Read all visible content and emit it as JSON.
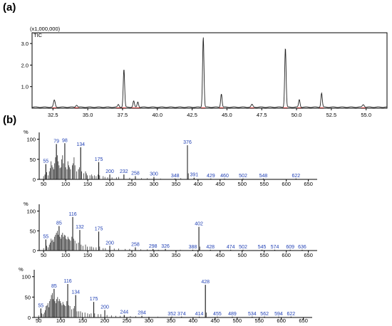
{
  "panels": {
    "a_label": "(a)",
    "b_label": "(b)"
  },
  "chart_data": [
    {
      "type": "line",
      "panel": "a",
      "scale_note": "(x1,000,000)",
      "trace_label": "TIC",
      "xlim": [
        31.0,
        56.5
      ],
      "ylim": [
        0.0,
        3.5
      ],
      "xticks": [
        32.5,
        35.0,
        37.5,
        40.0,
        42.5,
        45.0,
        47.5,
        50.0,
        52.5,
        55.0
      ],
      "xtick_labels": [
        "32.5",
        "35.0",
        "37.5",
        "40.0",
        "42.5",
        "45.0",
        "47.5",
        "50.0",
        "52.5",
        "55.0"
      ],
      "yticks": [
        1.0,
        2.0,
        3.0
      ],
      "ytick_labels": [
        "1.0",
        "2.0",
        "3.0"
      ],
      "baseline": 0.05,
      "peaks": [
        {
          "x": 32.6,
          "y": 0.32,
          "w": 0.06
        },
        {
          "x": 34.2,
          "y": 0.1,
          "w": 0.06
        },
        {
          "x": 37.2,
          "y": 0.12,
          "w": 0.05
        },
        {
          "x": 37.6,
          "y": 1.75,
          "w": 0.05
        },
        {
          "x": 38.3,
          "y": 0.28,
          "w": 0.05
        },
        {
          "x": 38.6,
          "y": 0.25,
          "w": 0.05
        },
        {
          "x": 43.3,
          "y": 3.25,
          "w": 0.05
        },
        {
          "x": 44.6,
          "y": 0.62,
          "w": 0.05
        },
        {
          "x": 46.8,
          "y": 0.12,
          "w": 0.06
        },
        {
          "x": 49.2,
          "y": 2.75,
          "w": 0.05
        },
        {
          "x": 50.2,
          "y": 0.35,
          "w": 0.05
        },
        {
          "x": 51.8,
          "y": 0.65,
          "w": 0.05
        },
        {
          "x": 54.8,
          "y": 0.12,
          "w": 0.07
        }
      ]
    },
    {
      "type": "bar",
      "panel": "b1",
      "ylabel": "%",
      "xlim": [
        40,
        670
      ],
      "ylim": [
        0,
        110
      ],
      "xticks": [
        50,
        100,
        150,
        200,
        250,
        300,
        350,
        400,
        450,
        500,
        550,
        600,
        650
      ],
      "yticks": [
        0,
        50,
        100
      ],
      "peak_labels": [
        {
          "mz": 55,
          "i": 38,
          "label": "55"
        },
        {
          "mz": 79,
          "i": 88,
          "label": "79"
        },
        {
          "mz": 98,
          "i": 90,
          "label": "98"
        },
        {
          "mz": 134,
          "i": 80,
          "label": "134"
        },
        {
          "mz": 175,
          "i": 43,
          "label": "175"
        },
        {
          "mz": 200,
          "i": 12,
          "label": "200"
        },
        {
          "mz": 232,
          "i": 12,
          "label": "232"
        },
        {
          "mz": 258,
          "i": 8,
          "label": "258"
        },
        {
          "mz": 300,
          "i": 6,
          "label": "300"
        },
        {
          "mz": 348,
          "i": 2,
          "label": "348"
        },
        {
          "mz": 376,
          "i": 85,
          "label": "376"
        },
        {
          "mz": 391,
          "i": 4,
          "label": "391"
        },
        {
          "mz": 429,
          "i": 2,
          "label": "429"
        },
        {
          "mz": 460,
          "i": 2,
          "label": "460"
        },
        {
          "mz": 502,
          "i": 2,
          "label": "502"
        },
        {
          "mz": 548,
          "i": 2,
          "label": "548"
        },
        {
          "mz": 622,
          "i": 2,
          "label": "622"
        }
      ],
      "bars": [
        [
          50,
          8
        ],
        [
          53,
          12
        ],
        [
          55,
          38
        ],
        [
          57,
          18
        ],
        [
          60,
          10
        ],
        [
          63,
          20
        ],
        [
          65,
          28
        ],
        [
          67,
          45
        ],
        [
          69,
          35
        ],
        [
          71,
          30
        ],
        [
          73,
          25
        ],
        [
          75,
          40
        ],
        [
          77,
          55
        ],
        [
          79,
          88
        ],
        [
          81,
          60
        ],
        [
          83,
          45
        ],
        [
          85,
          35
        ],
        [
          87,
          28
        ],
        [
          89,
          30
        ],
        [
          91,
          50
        ],
        [
          93,
          60
        ],
        [
          95,
          40
        ],
        [
          98,
          90
        ],
        [
          100,
          30
        ],
        [
          103,
          25
        ],
        [
          105,
          45
        ],
        [
          107,
          35
        ],
        [
          109,
          30
        ],
        [
          111,
          25
        ],
        [
          115,
          35
        ],
        [
          117,
          40
        ],
        [
          119,
          55
        ],
        [
          121,
          35
        ],
        [
          125,
          20
        ],
        [
          129,
          25
        ],
        [
          131,
          30
        ],
        [
          134,
          80
        ],
        [
          136,
          20
        ],
        [
          141,
          15
        ],
        [
          145,
          20
        ],
        [
          147,
          15
        ],
        [
          149,
          10
        ],
        [
          155,
          10
        ],
        [
          159,
          12
        ],
        [
          161,
          8
        ],
        [
          165,
          10
        ],
        [
          169,
          8
        ],
        [
          173,
          12
        ],
        [
          175,
          43
        ],
        [
          177,
          10
        ],
        [
          185,
          8
        ],
        [
          189,
          6
        ],
        [
          195,
          5
        ],
        [
          200,
          12
        ],
        [
          205,
          5
        ],
        [
          215,
          5
        ],
        [
          220,
          6
        ],
        [
          232,
          12
        ],
        [
          245,
          4
        ],
        [
          258,
          8
        ],
        [
          272,
          3
        ],
        [
          285,
          3
        ],
        [
          300,
          6
        ],
        [
          315,
          2
        ],
        [
          348,
          2
        ],
        [
          361,
          3
        ],
        [
          376,
          85
        ],
        [
          378,
          15
        ],
        [
          391,
          4
        ],
        [
          429,
          2
        ],
        [
          460,
          2
        ],
        [
          502,
          2
        ],
        [
          548,
          2
        ],
        [
          622,
          2
        ]
      ]
    },
    {
      "type": "bar",
      "panel": "b2",
      "ylabel": "%",
      "xlim": [
        40,
        670
      ],
      "ylim": [
        0,
        110
      ],
      "xticks": [
        50,
        100,
        150,
        200,
        250,
        300,
        350,
        400,
        450,
        500,
        550,
        600,
        650
      ],
      "yticks": [
        0,
        50,
        100
      ],
      "peak_labels": [
        {
          "mz": 55,
          "i": 28,
          "label": "55"
        },
        {
          "mz": 85,
          "i": 62,
          "label": "85"
        },
        {
          "mz": 116,
          "i": 85,
          "label": "116"
        },
        {
          "mz": 132,
          "i": 52,
          "label": "132"
        },
        {
          "mz": 175,
          "i": 48,
          "label": "175"
        },
        {
          "mz": 200,
          "i": 12,
          "label": "200"
        },
        {
          "mz": 258,
          "i": 8,
          "label": "258"
        },
        {
          "mz": 298,
          "i": 4,
          "label": "298"
        },
        {
          "mz": 326,
          "i": 4,
          "label": "326"
        },
        {
          "mz": 388,
          "i": 2,
          "label": "388"
        },
        {
          "mz": 402,
          "i": 60,
          "label": "402"
        },
        {
          "mz": 428,
          "i": 2,
          "label": "428"
        },
        {
          "mz": 474,
          "i": 2,
          "label": "474"
        },
        {
          "mz": 502,
          "i": 2,
          "label": "502"
        },
        {
          "mz": 545,
          "i": 2,
          "label": "545"
        },
        {
          "mz": 574,
          "i": 2,
          "label": "574"
        },
        {
          "mz": 609,
          "i": 2,
          "label": "609"
        },
        {
          "mz": 636,
          "i": 2,
          "label": "636"
        }
      ],
      "bars": [
        [
          50,
          6
        ],
        [
          55,
          28
        ],
        [
          57,
          12
        ],
        [
          60,
          8
        ],
        [
          63,
          15
        ],
        [
          65,
          20
        ],
        [
          67,
          30
        ],
        [
          69,
          25
        ],
        [
          71,
          28
        ],
        [
          73,
          22
        ],
        [
          75,
          35
        ],
        [
          77,
          40
        ],
        [
          79,
          45
        ],
        [
          81,
          50
        ],
        [
          83,
          40
        ],
        [
          85,
          62
        ],
        [
          87,
          35
        ],
        [
          89,
          30
        ],
        [
          91,
          40
        ],
        [
          93,
          45
        ],
        [
          95,
          35
        ],
        [
          97,
          40
        ],
        [
          99,
          38
        ],
        [
          101,
          30
        ],
        [
          103,
          28
        ],
        [
          105,
          35
        ],
        [
          107,
          30
        ],
        [
          109,
          28
        ],
        [
          111,
          25
        ],
        [
          114,
          35
        ],
        [
          116,
          85
        ],
        [
          118,
          30
        ],
        [
          121,
          25
        ],
        [
          125,
          18
        ],
        [
          129,
          20
        ],
        [
          132,
          52
        ],
        [
          135,
          15
        ],
        [
          139,
          12
        ],
        [
          145,
          15
        ],
        [
          149,
          10
        ],
        [
          155,
          10
        ],
        [
          159,
          10
        ],
        [
          163,
          8
        ],
        [
          169,
          8
        ],
        [
          175,
          48
        ],
        [
          177,
          10
        ],
        [
          185,
          6
        ],
        [
          190,
          6
        ],
        [
          200,
          12
        ],
        [
          210,
          5
        ],
        [
          220,
          5
        ],
        [
          235,
          4
        ],
        [
          245,
          4
        ],
        [
          258,
          8
        ],
        [
          270,
          3
        ],
        [
          285,
          3
        ],
        [
          298,
          4
        ],
        [
          310,
          2
        ],
        [
          326,
          4
        ],
        [
          360,
          2
        ],
        [
          388,
          2
        ],
        [
          402,
          60
        ],
        [
          404,
          10
        ],
        [
          428,
          2
        ],
        [
          474,
          2
        ],
        [
          502,
          2
        ],
        [
          545,
          2
        ],
        [
          574,
          2
        ],
        [
          609,
          2
        ],
        [
          636,
          2
        ]
      ]
    },
    {
      "type": "bar",
      "panel": "b3",
      "ylabel": "%",
      "xlim": [
        40,
        670
      ],
      "ylim": [
        0,
        110
      ],
      "xticks": [
        50,
        100,
        150,
        200,
        250,
        300,
        350,
        400,
        450,
        500,
        550,
        600,
        650
      ],
      "yticks": [
        0,
        50,
        100
      ],
      "peak_labels": [
        {
          "mz": 55,
          "i": 22,
          "label": "55"
        },
        {
          "mz": 85,
          "i": 70,
          "label": "85"
        },
        {
          "mz": 116,
          "i": 82,
          "label": "116"
        },
        {
          "mz": 134,
          "i": 55,
          "label": "134"
        },
        {
          "mz": 175,
          "i": 38,
          "label": "175"
        },
        {
          "mz": 200,
          "i": 18,
          "label": "200"
        },
        {
          "mz": 244,
          "i": 6,
          "label": "244"
        },
        {
          "mz": 284,
          "i": 4,
          "label": "284"
        },
        {
          "mz": 352,
          "i": 2,
          "label": "352"
        },
        {
          "mz": 374,
          "i": 2,
          "label": "374"
        },
        {
          "mz": 414,
          "i": 2,
          "label": "414"
        },
        {
          "mz": 428,
          "i": 80,
          "label": "428"
        },
        {
          "mz": 455,
          "i": 2,
          "label": "455"
        },
        {
          "mz": 489,
          "i": 2,
          "label": "489"
        },
        {
          "mz": 534,
          "i": 2,
          "label": "534"
        },
        {
          "mz": 562,
          "i": 2,
          "label": "562"
        },
        {
          "mz": 594,
          "i": 2,
          "label": "594"
        },
        {
          "mz": 622,
          "i": 2,
          "label": "622"
        }
      ],
      "bars": [
        [
          50,
          5
        ],
        [
          55,
          22
        ],
        [
          57,
          10
        ],
        [
          60,
          8
        ],
        [
          63,
          12
        ],
        [
          65,
          18
        ],
        [
          67,
          28
        ],
        [
          69,
          30
        ],
        [
          71,
          35
        ],
        [
          73,
          25
        ],
        [
          75,
          40
        ],
        [
          77,
          45
        ],
        [
          79,
          55
        ],
        [
          81,
          60
        ],
        [
          83,
          45
        ],
        [
          85,
          70
        ],
        [
          87,
          40
        ],
        [
          89,
          35
        ],
        [
          91,
          45
        ],
        [
          93,
          50
        ],
        [
          95,
          40
        ],
        [
          97,
          45
        ],
        [
          99,
          40
        ],
        [
          101,
          35
        ],
        [
          103,
          30
        ],
        [
          105,
          38
        ],
        [
          107,
          32
        ],
        [
          109,
          30
        ],
        [
          111,
          28
        ],
        [
          114,
          40
        ],
        [
          116,
          82
        ],
        [
          118,
          30
        ],
        [
          121,
          28
        ],
        [
          125,
          20
        ],
        [
          129,
          22
        ],
        [
          131,
          28
        ],
        [
          134,
          55
        ],
        [
          137,
          15
        ],
        [
          141,
          15
        ],
        [
          145,
          15
        ],
        [
          149,
          12
        ],
        [
          155,
          12
        ],
        [
          161,
          10
        ],
        [
          165,
          8
        ],
        [
          169,
          10
        ],
        [
          175,
          38
        ],
        [
          177,
          10
        ],
        [
          185,
          8
        ],
        [
          191,
          8
        ],
        [
          200,
          18
        ],
        [
          205,
          6
        ],
        [
          215,
          5
        ],
        [
          225,
          4
        ],
        [
          235,
          4
        ],
        [
          244,
          6
        ],
        [
          258,
          3
        ],
        [
          270,
          3
        ],
        [
          284,
          4
        ],
        [
          300,
          2
        ],
        [
          320,
          2
        ],
        [
          352,
          2
        ],
        [
          374,
          2
        ],
        [
          414,
          2
        ],
        [
          428,
          80
        ],
        [
          430,
          12
        ],
        [
          455,
          2
        ],
        [
          489,
          2
        ],
        [
          534,
          2
        ],
        [
          562,
          2
        ],
        [
          594,
          2
        ],
        [
          622,
          2
        ]
      ]
    }
  ]
}
